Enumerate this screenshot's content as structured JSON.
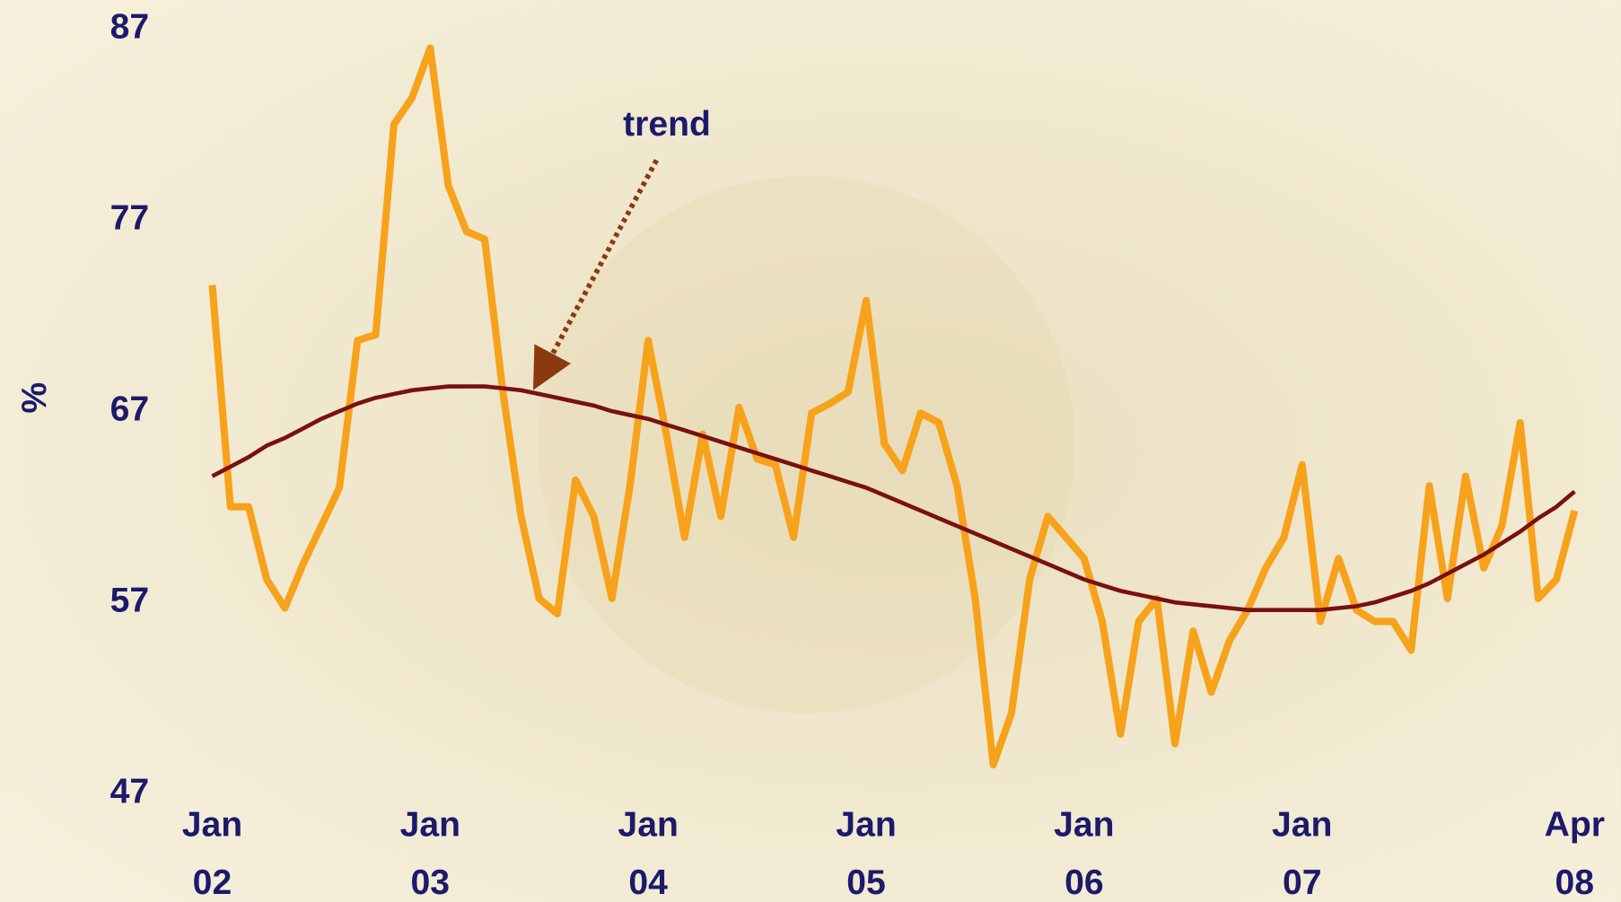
{
  "chart_data": {
    "type": "line",
    "y_label": "%",
    "x": [
      "2002-01",
      "2002-02",
      "2002-03",
      "2002-04",
      "2002-05",
      "2002-06",
      "2002-07",
      "2002-08",
      "2002-09",
      "2002-10",
      "2002-11",
      "2002-12",
      "2003-01",
      "2003-02",
      "2003-03",
      "2003-04",
      "2003-05",
      "2003-06",
      "2003-07",
      "2003-08",
      "2003-09",
      "2003-10",
      "2003-11",
      "2003-12",
      "2004-01",
      "2004-02",
      "2004-03",
      "2004-04",
      "2004-05",
      "2004-06",
      "2004-07",
      "2004-08",
      "2004-09",
      "2004-10",
      "2004-11",
      "2004-12",
      "2005-01",
      "2005-02",
      "2005-03",
      "2005-04",
      "2005-05",
      "2005-06",
      "2005-07",
      "2005-08",
      "2005-09",
      "2005-10",
      "2005-11",
      "2005-12",
      "2006-01",
      "2006-02",
      "2006-03",
      "2006-04",
      "2006-05",
      "2006-06",
      "2006-07",
      "2006-08",
      "2006-09",
      "2006-10",
      "2006-11",
      "2006-12",
      "2007-01",
      "2007-02",
      "2007-03",
      "2007-04",
      "2007-05",
      "2007-06",
      "2007-07",
      "2007-08",
      "2007-09",
      "2007-10",
      "2007-11",
      "2007-12",
      "2008-01",
      "2008-02",
      "2008-03",
      "2008-04"
    ],
    "series": [
      {
        "color": "#f7a21b",
        "values": [
          73.6,
          62,
          62,
          58.2,
          56.7,
          59,
          61,
          63,
          70.7,
          71,
          82,
          83.4,
          86,
          78.8,
          76.4,
          76,
          68,
          61.5,
          57.2,
          56.4,
          63.4,
          61.5,
          57.2,
          63.1,
          70.7,
          65.8,
          60.4,
          65.8,
          61.5,
          67.2,
          64.5,
          64.2,
          60.4,
          66.9,
          67.4,
          68,
          72.8,
          65.3,
          63.9,
          66.9,
          66.4,
          63.1,
          57.2,
          48.5,
          51.2,
          58.2,
          61.5,
          60.4,
          59.3,
          56,
          50.1,
          56,
          57.2,
          49.6,
          55.5,
          52.3,
          55,
          56.6,
          58.8,
          60.4,
          64.2,
          56,
          59.3,
          56.6,
          56,
          56,
          54.5,
          63.1,
          57.2,
          63.6,
          58.8,
          61,
          66.4,
          57.2,
          58.2,
          61.8
        ]
      },
      {
        "name": "trend",
        "color": "#7a1010",
        "values": [
          63.6,
          64.1,
          64.6,
          65.2,
          65.6,
          66.1,
          66.6,
          67,
          67.4,
          67.7,
          67.9,
          68.1,
          68.2,
          68.3,
          68.3,
          68.3,
          68.2,
          68.1,
          67.9,
          67.7,
          67.5,
          67.3,
          67,
          66.8,
          66.6,
          66.3,
          66,
          65.7,
          65.4,
          65.1,
          64.8,
          64.5,
          64.2,
          63.9,
          63.6,
          63.3,
          63,
          62.6,
          62.2,
          61.8,
          61.4,
          61,
          60.6,
          60.2,
          59.8,
          59.4,
          59,
          58.6,
          58.2,
          57.9,
          57.6,
          57.4,
          57.2,
          57,
          56.9,
          56.8,
          56.7,
          56.6,
          56.6,
          56.6,
          56.6,
          56.6,
          56.7,
          56.8,
          57,
          57.3,
          57.6,
          58,
          58.5,
          59,
          59.5,
          60.1,
          60.7,
          61.4,
          62,
          62.8
        ]
      }
    ],
    "ylim": [
      47,
      87
    ],
    "yticks": [
      47,
      57,
      67,
      77,
      87
    ],
    "xticks": [
      {
        "value": "2002-01",
        "label": "Jan 02"
      },
      {
        "value": "2003-01",
        "label": "Jan 03"
      },
      {
        "value": "2004-01",
        "label": "Jan 04"
      },
      {
        "value": "2005-01",
        "label": "Jan 05"
      },
      {
        "value": "2006-01",
        "label": "Jan 06"
      },
      {
        "value": "2007-01",
        "label": "Jan 07"
      },
      {
        "value": "2008-04",
        "label": "Apr 08"
      }
    ],
    "grid": false
  }
}
